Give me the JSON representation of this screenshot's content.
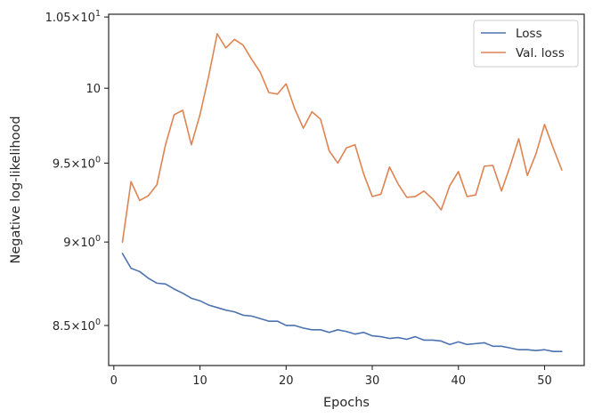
{
  "chart_data": {
    "type": "line",
    "xlabel": "Epochs",
    "ylabel": "Negative log-likelihood",
    "yscale": "log",
    "xlim": [
      -0.6,
      54.6
    ],
    "ylim": [
      8.27,
      10.52
    ],
    "grid": false,
    "legend_position": "top-right",
    "x_ticks": [
      0,
      10,
      20,
      30,
      40,
      50
    ],
    "x_tick_labels": [
      "0",
      "10",
      "20",
      "30",
      "40",
      "50"
    ],
    "y_ticks": [
      {
        "value": 8.5,
        "mantissa": "8.5",
        "base": "10",
        "exp": "0"
      },
      {
        "value": 9.0,
        "mantissa": "9",
        "base": "10",
        "exp": "0"
      },
      {
        "value": 9.5,
        "mantissa": "9.5",
        "base": "10",
        "exp": "0"
      },
      {
        "value": 10.0,
        "plain": "10",
        "base": "",
        "exp": "1"
      },
      {
        "value": 10.5,
        "mantissa": "1.05",
        "base": "10",
        "exp": "1"
      }
    ],
    "x": [
      1,
      2,
      3,
      4,
      5,
      6,
      7,
      8,
      9,
      10,
      11,
      12,
      13,
      14,
      15,
      16,
      17,
      18,
      19,
      20,
      21,
      22,
      23,
      24,
      25,
      26,
      27,
      28,
      29,
      30,
      31,
      32,
      33,
      34,
      35,
      36,
      37,
      38,
      39,
      40,
      41,
      42,
      43,
      44,
      45,
      46,
      47,
      48,
      49,
      50,
      51,
      52
    ],
    "series": [
      {
        "name": "Loss",
        "color": "#4c72b0",
        "values": [
          8.93,
          8.84,
          8.82,
          8.78,
          8.75,
          8.745,
          8.715,
          8.69,
          8.66,
          8.645,
          8.62,
          8.605,
          8.59,
          8.58,
          8.56,
          8.555,
          8.54,
          8.525,
          8.525,
          8.5,
          8.5,
          8.485,
          8.475,
          8.475,
          8.46,
          8.475,
          8.465,
          8.45,
          8.46,
          8.44,
          8.435,
          8.425,
          8.43,
          8.42,
          8.435,
          8.415,
          8.415,
          8.41,
          8.39,
          8.405,
          8.39,
          8.395,
          8.4,
          8.38,
          8.38,
          8.37,
          8.36,
          8.36,
          8.355,
          8.36,
          8.35,
          8.35
        ]
      },
      {
        "name": "Val. loss",
        "color": "#dd8452",
        "values": [
          9.0,
          9.38,
          9.26,
          9.29,
          9.36,
          9.62,
          9.82,
          9.85,
          9.62,
          9.82,
          10.08,
          10.38,
          10.28,
          10.34,
          10.3,
          10.2,
          10.11,
          9.97,
          9.96,
          10.03,
          9.86,
          9.73,
          9.84,
          9.79,
          9.58,
          9.5,
          9.6,
          9.62,
          9.43,
          9.285,
          9.3,
          9.475,
          9.365,
          9.28,
          9.285,
          9.32,
          9.27,
          9.2,
          9.355,
          9.445,
          9.285,
          9.295,
          9.48,
          9.485,
          9.32,
          9.48,
          9.66,
          9.42,
          9.56,
          9.755,
          9.6,
          9.455
        ]
      }
    ]
  }
}
